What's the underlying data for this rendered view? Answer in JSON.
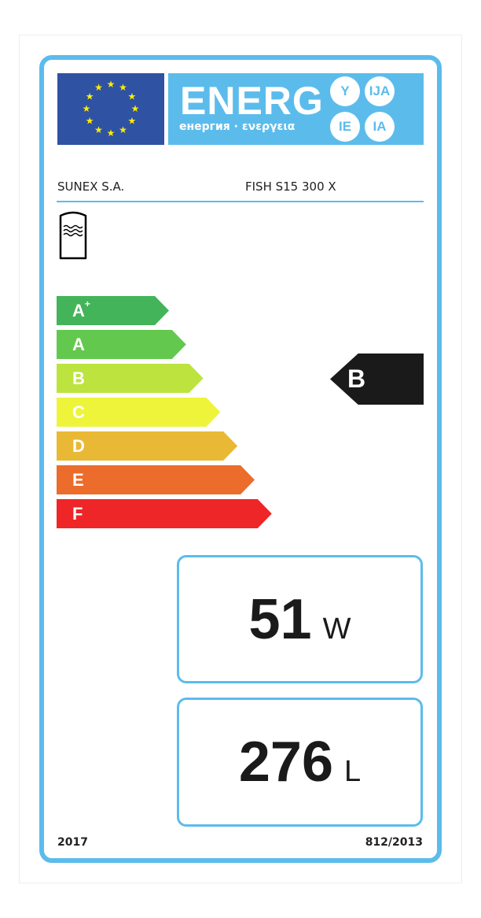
{
  "header": {
    "title": "ENERG",
    "subtitle": "енергия · ενεργεια",
    "suffixes": [
      "Y",
      "IJA",
      "IE",
      "IA"
    ]
  },
  "supplier": "SUNEX S.A.",
  "model": "FISH S15 300 X",
  "product_icon": "water-tank-icon",
  "scale": [
    {
      "label": "A",
      "sup": "+",
      "color": "#44b45a"
    },
    {
      "label": "A",
      "sup": "",
      "color": "#63c94e"
    },
    {
      "label": "B",
      "sup": "",
      "color": "#bde33f"
    },
    {
      "label": "C",
      "sup": "",
      "color": "#eef43a"
    },
    {
      "label": "D",
      "sup": "",
      "color": "#e9b935"
    },
    {
      "label": "E",
      "sup": "",
      "color": "#eb6c2b"
    },
    {
      "label": "F",
      "sup": "",
      "color": "#ee2627"
    }
  ],
  "rating": "B",
  "standing_loss": {
    "value": "51",
    "unit": "W"
  },
  "volume": {
    "value": "276",
    "unit": "L"
  },
  "footer": {
    "year": "2017",
    "regulation": "812/2013"
  },
  "colors": {
    "accent": "#5bbcec",
    "eu_blue": "#2f52a3",
    "star": "#ffed00"
  }
}
